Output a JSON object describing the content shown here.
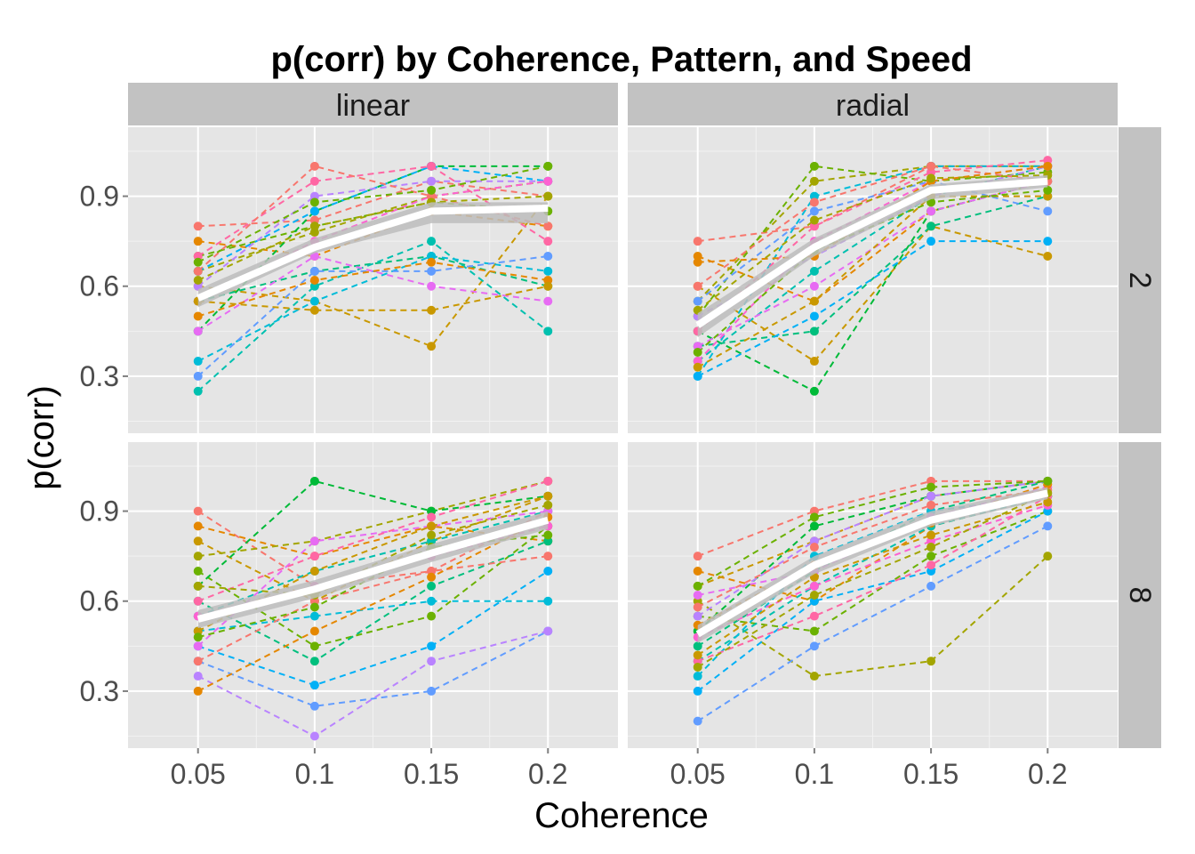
{
  "chart_data": {
    "type": "line",
    "title": "p(corr) by Coherence, Pattern, and Speed",
    "xlabel": "Coherence",
    "ylabel": "p(corr)",
    "x": [
      0.05,
      0.1,
      0.15,
      0.2
    ],
    "x_tick_labels": [
      "0.05",
      "0.1",
      "0.15",
      "0.2"
    ],
    "y_ticks": [
      0.3,
      0.6,
      0.9
    ],
    "y_tick_labels": [
      "0.3",
      "0.6",
      "0.9"
    ],
    "xlim": [
      0.02,
      0.23
    ],
    "ylim": [
      0.11,
      1.13
    ],
    "grid": true,
    "facet_columns": [
      "linear",
      "radial"
    ],
    "facet_rows": [
      "2",
      "8"
    ],
    "colors": {
      "panel_background": "#e5e5e5",
      "strip_background": "#c2c2c2",
      "grid": "#ffffff",
      "mean_line": "#ffffff",
      "ribbon": "#bdbdbd",
      "palette": [
        "#f8766d",
        "#e58700",
        "#c99800",
        "#a3a500",
        "#6bb100",
        "#00ba38",
        "#00bf7d",
        "#00c0af",
        "#00bcd8",
        "#00b0f6",
        "#619cff",
        "#b983ff",
        "#e76bf3",
        "#fd61d1",
        "#ff67a4"
      ]
    },
    "panels": [
      {
        "pattern": "linear",
        "speed": "2",
        "mean": [
          0.56,
          0.73,
          0.85,
          0.86
        ],
        "ribbon_lo": [
          0.53,
          0.71,
          0.81,
          0.81
        ],
        "ribbon_hi": [
          0.59,
          0.76,
          0.88,
          0.88
        ],
        "subjects": [
          [
            0.8,
            0.82,
            0.95,
            0.9
          ],
          [
            0.75,
            0.7,
            0.85,
            0.8
          ],
          [
            0.6,
            0.55,
            0.4,
            0.9
          ],
          [
            0.65,
            0.78,
            0.9,
            0.95
          ],
          [
            0.7,
            0.8,
            0.88,
            0.85
          ],
          [
            0.45,
            0.85,
            1.0,
            1.0
          ],
          [
            0.55,
            0.65,
            0.7,
            0.6
          ],
          [
            0.25,
            0.6,
            0.75,
            0.45
          ],
          [
            0.35,
            0.55,
            0.7,
            0.65
          ],
          [
            0.65,
            0.85,
            1.0,
            0.95
          ],
          [
            0.3,
            0.65,
            0.65,
            0.7
          ],
          [
            0.6,
            0.9,
            0.95,
            0.95
          ],
          [
            0.45,
            0.7,
            0.6,
            0.55
          ],
          [
            0.55,
            0.75,
            0.9,
            0.95
          ],
          [
            0.7,
            0.95,
            1.0,
            0.75
          ],
          [
            0.65,
            1.0,
            0.9,
            0.8
          ],
          [
            0.5,
            0.62,
            0.68,
            0.62
          ],
          [
            0.55,
            0.52,
            0.52,
            0.6
          ],
          [
            0.62,
            0.8,
            0.88,
            0.9
          ],
          [
            0.68,
            0.88,
            0.92,
            1.0
          ]
        ]
      },
      {
        "pattern": "radial",
        "speed": "2",
        "mean": [
          0.47,
          0.73,
          0.92,
          0.95
        ],
        "ribbon_lo": [
          0.43,
          0.7,
          0.89,
          0.93
        ],
        "ribbon_hi": [
          0.51,
          0.76,
          0.94,
          0.97
        ],
        "subjects": [
          [
            0.75,
            0.8,
            1.0,
            1.0
          ],
          [
            0.7,
            0.55,
            0.85,
            0.95
          ],
          [
            0.6,
            0.35,
            0.8,
            0.7
          ],
          [
            0.55,
            0.95,
            1.0,
            1.0
          ],
          [
            0.5,
            1.0,
            0.95,
            0.98
          ],
          [
            0.45,
            0.25,
            0.85,
            0.95
          ],
          [
            0.4,
            0.45,
            0.8,
            0.9
          ],
          [
            0.35,
            0.65,
            0.9,
            1.0
          ],
          [
            0.3,
            0.9,
            1.0,
            1.0
          ],
          [
            0.3,
            0.5,
            0.75,
            0.75
          ],
          [
            0.55,
            0.85,
            0.95,
            0.85
          ],
          [
            0.5,
            0.7,
            0.9,
            1.0
          ],
          [
            0.4,
            0.6,
            0.85,
            0.95
          ],
          [
            0.35,
            0.75,
            0.95,
            1.0
          ],
          [
            0.45,
            0.8,
            0.98,
            1.02
          ],
          [
            0.6,
            0.88,
            1.0,
            0.95
          ],
          [
            0.68,
            0.7,
            0.95,
            1.0
          ],
          [
            0.33,
            0.55,
            0.9,
            0.9
          ],
          [
            0.52,
            0.82,
            0.96,
            0.97
          ],
          [
            0.38,
            0.72,
            0.88,
            0.92
          ]
        ]
      },
      {
        "pattern": "linear",
        "speed": "8",
        "mean": [
          0.54,
          0.64,
          0.76,
          0.87
        ],
        "ribbon_lo": [
          0.51,
          0.61,
          0.73,
          0.84
        ],
        "ribbon_hi": [
          0.57,
          0.67,
          0.79,
          0.9
        ],
        "subjects": [
          [
            0.9,
            0.65,
            0.7,
            0.9
          ],
          [
            0.85,
            0.75,
            0.85,
            0.8
          ],
          [
            0.8,
            0.6,
            0.8,
            0.95
          ],
          [
            0.75,
            0.8,
            0.9,
            1.0
          ],
          [
            0.7,
            0.45,
            0.55,
            0.85
          ],
          [
            0.65,
            1.0,
            0.9,
            0.95
          ],
          [
            0.6,
            0.4,
            0.65,
            0.8
          ],
          [
            0.55,
            0.7,
            0.8,
            0.9
          ],
          [
            0.5,
            0.55,
            0.6,
            0.6
          ],
          [
            0.45,
            0.32,
            0.45,
            0.7
          ],
          [
            0.4,
            0.25,
            0.3,
            0.5
          ],
          [
            0.35,
            0.15,
            0.4,
            0.5
          ],
          [
            0.45,
            0.8,
            0.85,
            0.9
          ],
          [
            0.55,
            0.65,
            0.75,
            0.85
          ],
          [
            0.6,
            0.75,
            0.88,
            1.0
          ],
          [
            0.4,
            0.6,
            0.7,
            0.75
          ],
          [
            0.3,
            0.5,
            0.68,
            0.88
          ],
          [
            0.5,
            0.7,
            0.85,
            0.95
          ],
          [
            0.65,
            0.62,
            0.82,
            0.92
          ],
          [
            0.48,
            0.58,
            0.78,
            0.82
          ]
        ]
      },
      {
        "pattern": "radial",
        "speed": "8",
        "mean": [
          0.49,
          0.72,
          0.87,
          0.96
        ],
        "ribbon_lo": [
          0.46,
          0.69,
          0.85,
          0.94
        ],
        "ribbon_hi": [
          0.52,
          0.75,
          0.9,
          0.98
        ],
        "subjects": [
          [
            0.75,
            0.9,
            1.0,
            1.0
          ],
          [
            0.7,
            0.6,
            0.85,
            0.95
          ],
          [
            0.65,
            0.8,
            0.95,
            1.0
          ],
          [
            0.6,
            0.35,
            0.4,
            0.75
          ],
          [
            0.55,
            0.5,
            0.75,
            0.9
          ],
          [
            0.5,
            0.85,
            0.95,
            1.0
          ],
          [
            0.45,
            0.7,
            0.9,
            1.0
          ],
          [
            0.4,
            0.65,
            0.85,
            0.95
          ],
          [
            0.35,
            0.75,
            0.9,
            0.95
          ],
          [
            0.3,
            0.6,
            0.7,
            0.9
          ],
          [
            0.2,
            0.45,
            0.65,
            0.85
          ],
          [
            0.55,
            0.8,
            0.95,
            1.0
          ],
          [
            0.62,
            0.7,
            0.88,
            0.98
          ],
          [
            0.48,
            0.65,
            0.8,
            0.92
          ],
          [
            0.4,
            0.55,
            0.72,
            0.95
          ],
          [
            0.58,
            0.78,
            0.92,
            0.97
          ],
          [
            0.52,
            0.72,
            0.86,
            0.99
          ],
          [
            0.42,
            0.68,
            0.82,
            0.93
          ],
          [
            0.38,
            0.62,
            0.78,
            0.96
          ],
          [
            0.65,
            0.88,
            0.98,
            1.0
          ]
        ]
      }
    ]
  }
}
